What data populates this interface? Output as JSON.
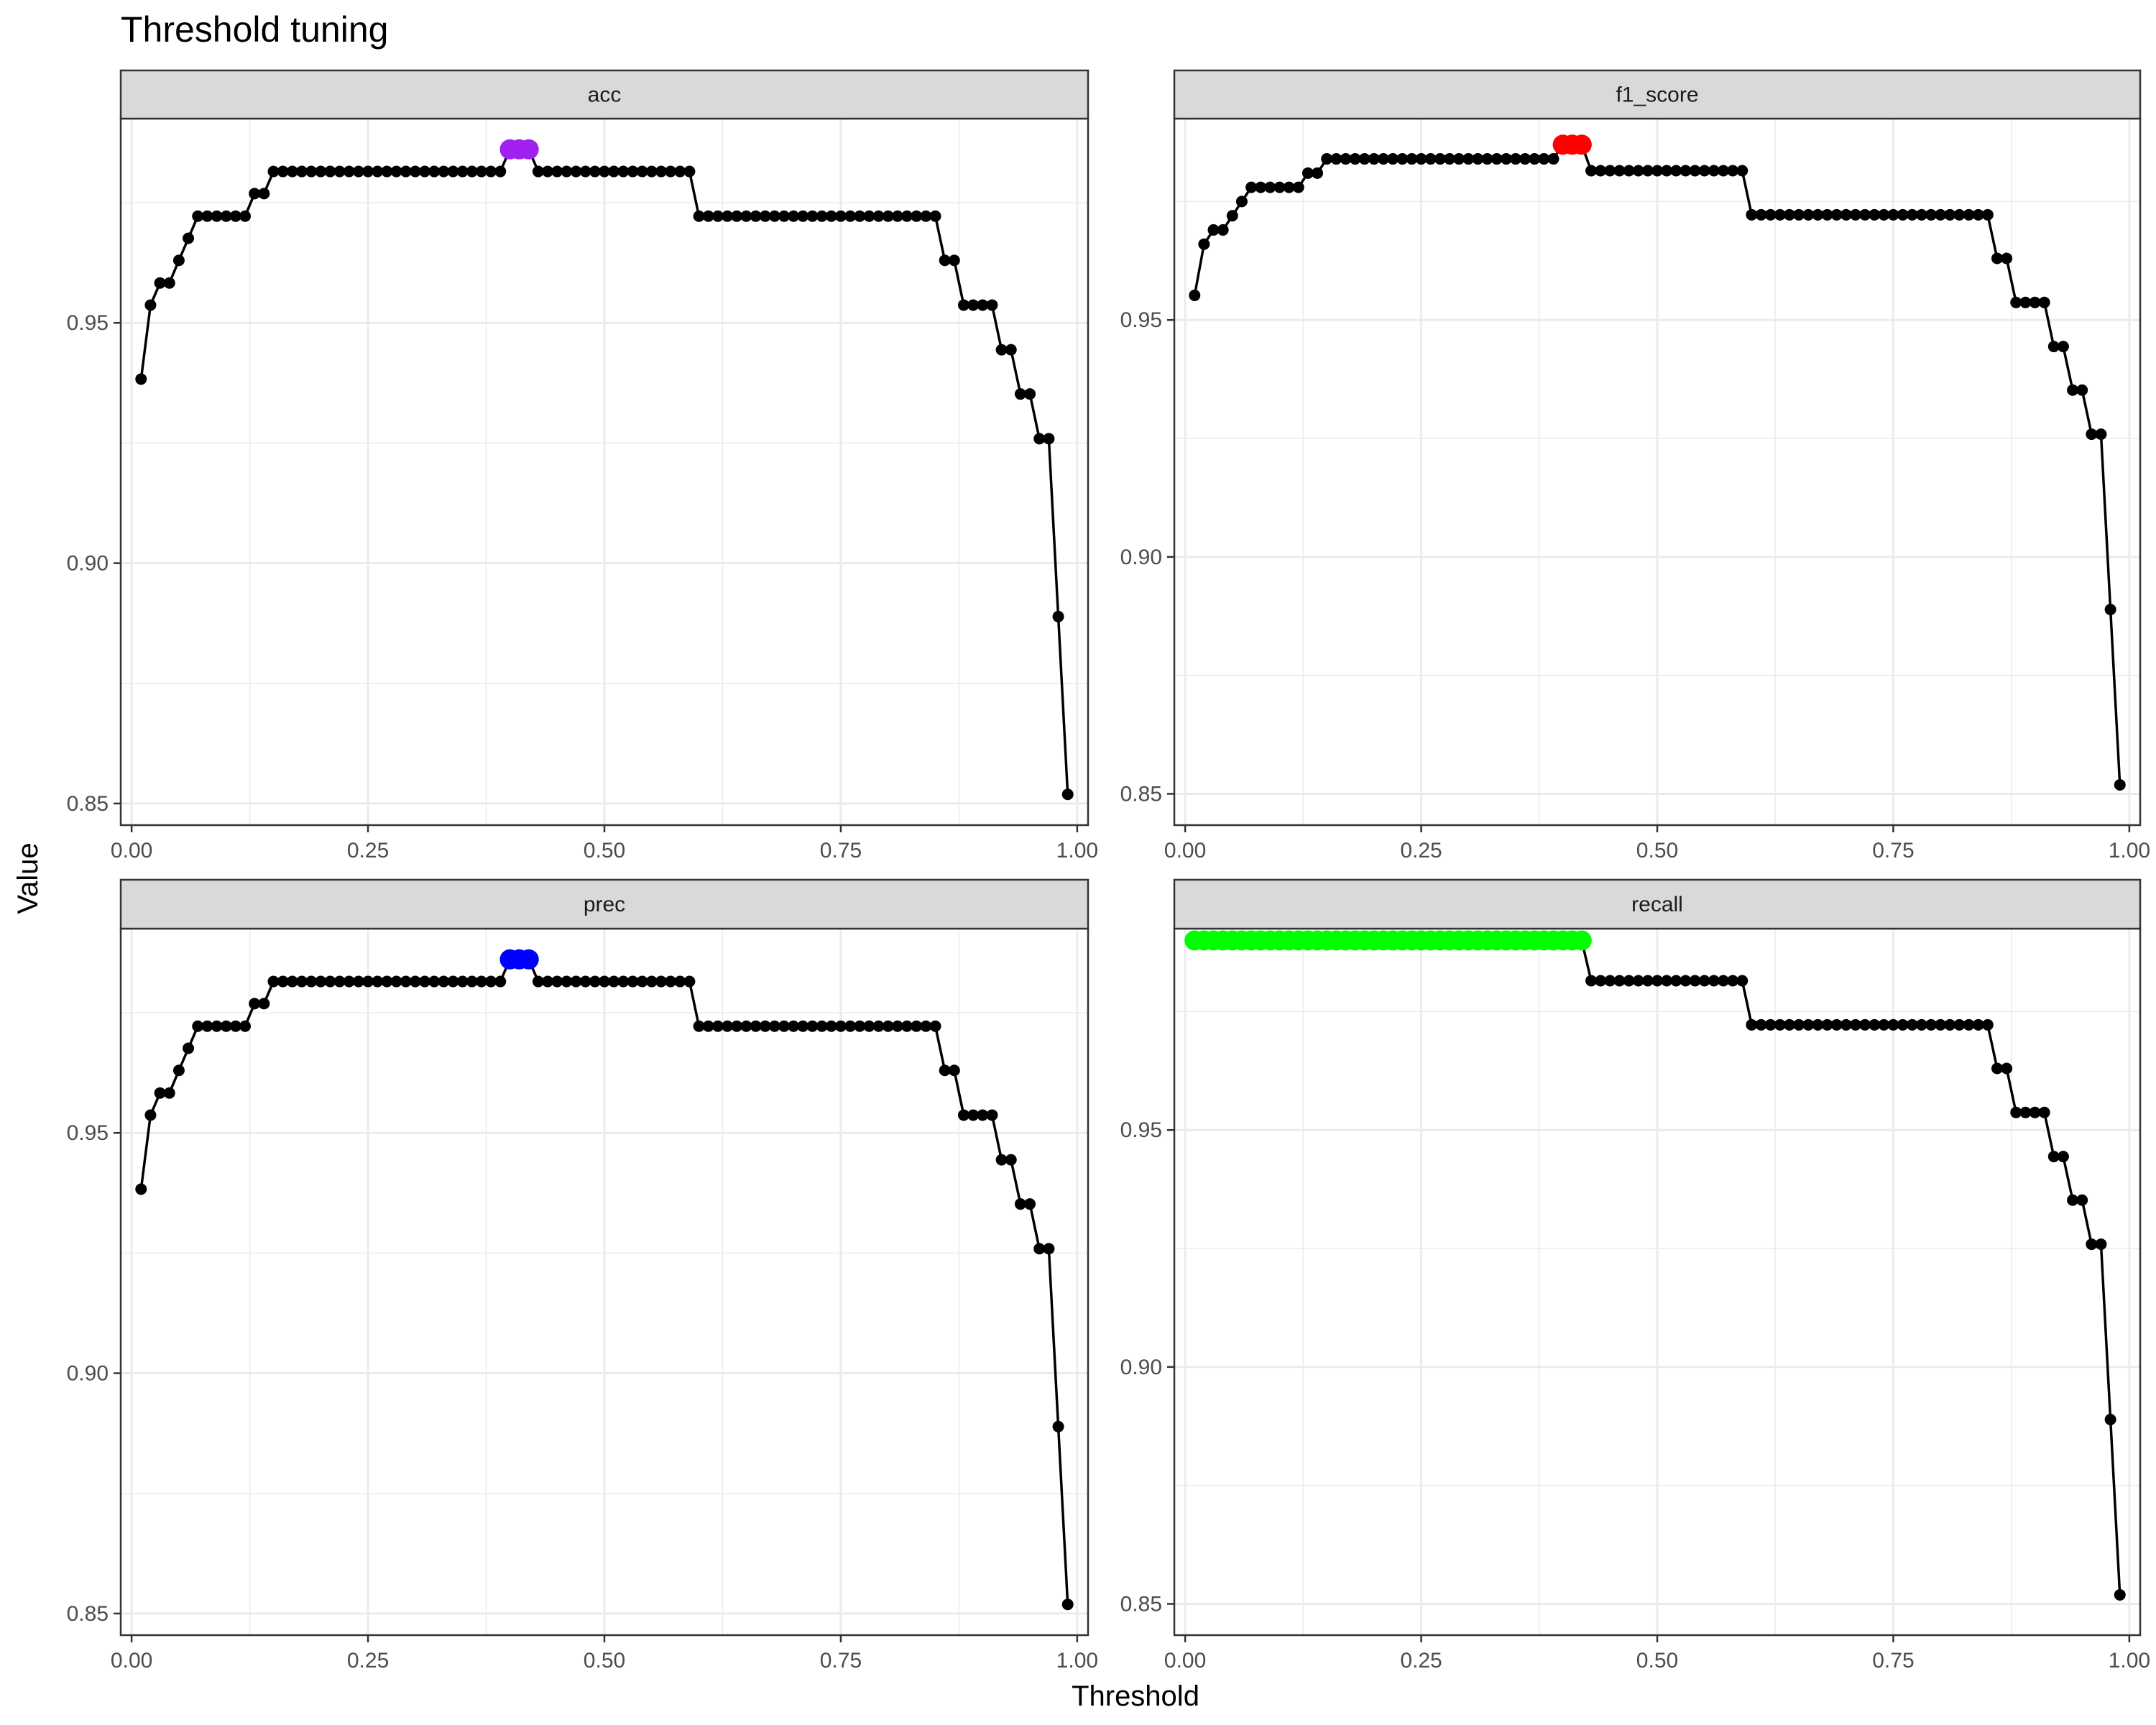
{
  "chart_data": {
    "type": "line",
    "title": "Threshold tuning",
    "xlabel": "Threshold",
    "ylabel": "Value",
    "x": [
      0.01,
      0.02,
      0.03,
      0.04,
      0.05,
      0.06,
      0.07,
      0.08,
      0.09,
      0.1,
      0.11,
      0.12,
      0.13,
      0.14,
      0.15,
      0.16,
      0.17,
      0.18,
      0.19,
      0.2,
      0.21,
      0.22,
      0.23,
      0.24,
      0.25,
      0.26,
      0.27,
      0.28,
      0.29,
      0.3,
      0.31,
      0.32,
      0.33,
      0.34,
      0.35,
      0.36,
      0.37,
      0.38,
      0.39,
      0.4,
      0.41,
      0.42,
      0.43,
      0.44,
      0.45,
      0.46,
      0.47,
      0.48,
      0.49,
      0.5,
      0.51,
      0.52,
      0.53,
      0.54,
      0.55,
      0.56,
      0.57,
      0.58,
      0.59,
      0.6,
      0.61,
      0.62,
      0.63,
      0.64,
      0.65,
      0.66,
      0.67,
      0.68,
      0.69,
      0.7,
      0.71,
      0.72,
      0.73,
      0.74,
      0.75,
      0.76,
      0.77,
      0.78,
      0.79,
      0.8,
      0.81,
      0.82,
      0.83,
      0.84,
      0.85,
      0.86,
      0.87,
      0.88,
      0.89,
      0.9,
      0.91,
      0.92,
      0.93,
      0.94,
      0.95,
      0.96,
      0.97,
      0.98,
      0.99
    ],
    "xlim": [
      -0.0115,
      1.0115
    ],
    "x_ticks": [
      0.0,
      0.25,
      0.5,
      0.75,
      1.0
    ],
    "x_tick_labels": [
      "0.00",
      "0.25",
      "0.50",
      "0.75",
      "1.00"
    ],
    "line_color": "#000000",
    "grid": true,
    "legend": "none",
    "panels": [
      {
        "name": "acc",
        "highlight_color": "#A020F0",
        "highlight_x": [
          0.4,
          0.41,
          0.42
        ],
        "ylim": [
          0.8455,
          0.9925
        ],
        "y_ticks": [
          0.85,
          0.9,
          0.95
        ],
        "y_tick_labels": [
          "0.85",
          "0.90",
          "0.95"
        ],
        "values": [
          0.9383,
          0.9537,
          0.9583,
          0.9583,
          0.963,
          0.9676,
          0.9722,
          0.9722,
          0.9722,
          0.9722,
          0.9722,
          0.9722,
          0.9769,
          0.9769,
          0.9815,
          0.9815,
          0.9815,
          0.9815,
          0.9815,
          0.9815,
          0.9815,
          0.9815,
          0.9815,
          0.9815,
          0.9815,
          0.9815,
          0.9815,
          0.9815,
          0.9815,
          0.9815,
          0.9815,
          0.9815,
          0.9815,
          0.9815,
          0.9815,
          0.9815,
          0.9815,
          0.9815,
          0.9815,
          0.9861,
          0.9861,
          0.9861,
          0.9815,
          0.9815,
          0.9815,
          0.9815,
          0.9815,
          0.9815,
          0.9815,
          0.9815,
          0.9815,
          0.9815,
          0.9815,
          0.9815,
          0.9815,
          0.9815,
          0.9815,
          0.9815,
          0.9815,
          0.9722,
          0.9722,
          0.9722,
          0.9722,
          0.9722,
          0.9722,
          0.9722,
          0.9722,
          0.9722,
          0.9722,
          0.9722,
          0.9722,
          0.9722,
          0.9722,
          0.9722,
          0.9722,
          0.9722,
          0.9722,
          0.9722,
          0.9722,
          0.9722,
          0.9722,
          0.9722,
          0.9722,
          0.9722,
          0.9722,
          0.963,
          0.963,
          0.9537,
          0.9537,
          0.9537,
          0.9537,
          0.9444,
          0.9444,
          0.9352,
          0.9352,
          0.9259,
          0.9259,
          0.8889,
          0.8519
        ]
      },
      {
        "name": "f1_score",
        "highlight_color": "#FF0000",
        "highlight_x": [
          0.4,
          0.41,
          0.42
        ],
        "ylim": [
          0.8434,
          0.9925
        ],
        "y_ticks": [
          0.85,
          0.9,
          0.95
        ],
        "y_tick_labels": [
          "0.85",
          "0.90",
          "0.95"
        ],
        "values": [
          0.9552,
          0.966,
          0.969,
          0.969,
          0.972,
          0.975,
          0.978,
          0.978,
          0.978,
          0.978,
          0.978,
          0.978,
          0.981,
          0.981,
          0.984,
          0.984,
          0.984,
          0.984,
          0.984,
          0.984,
          0.984,
          0.984,
          0.984,
          0.984,
          0.984,
          0.984,
          0.984,
          0.984,
          0.984,
          0.984,
          0.984,
          0.984,
          0.984,
          0.984,
          0.984,
          0.984,
          0.984,
          0.984,
          0.984,
          0.987,
          0.987,
          0.987,
          0.9815,
          0.9815,
          0.9815,
          0.9815,
          0.9815,
          0.9815,
          0.9815,
          0.9815,
          0.9815,
          0.9815,
          0.9815,
          0.9815,
          0.9815,
          0.9815,
          0.9815,
          0.9815,
          0.9815,
          0.9722,
          0.9722,
          0.9722,
          0.9722,
          0.9722,
          0.9722,
          0.9722,
          0.9722,
          0.9722,
          0.9722,
          0.9722,
          0.9722,
          0.9722,
          0.9722,
          0.9722,
          0.9722,
          0.9722,
          0.9722,
          0.9722,
          0.9722,
          0.9722,
          0.9722,
          0.9722,
          0.9722,
          0.9722,
          0.9722,
          0.963,
          0.963,
          0.9537,
          0.9537,
          0.9537,
          0.9537,
          0.9444,
          0.9444,
          0.9352,
          0.9352,
          0.9259,
          0.9259,
          0.8889,
          0.8519
        ]
      },
      {
        "name": "prec",
        "highlight_color": "#0000FF",
        "highlight_x": [
          0.4,
          0.41,
          0.42
        ],
        "ylim": [
          0.8455,
          0.9925
        ],
        "y_ticks": [
          0.85,
          0.9,
          0.95
        ],
        "y_tick_labels": [
          "0.85",
          "0.90",
          "0.95"
        ],
        "values": [
          0.9383,
          0.9537,
          0.9583,
          0.9583,
          0.963,
          0.9676,
          0.9722,
          0.9722,
          0.9722,
          0.9722,
          0.9722,
          0.9722,
          0.9769,
          0.9769,
          0.9815,
          0.9815,
          0.9815,
          0.9815,
          0.9815,
          0.9815,
          0.9815,
          0.9815,
          0.9815,
          0.9815,
          0.9815,
          0.9815,
          0.9815,
          0.9815,
          0.9815,
          0.9815,
          0.9815,
          0.9815,
          0.9815,
          0.9815,
          0.9815,
          0.9815,
          0.9815,
          0.9815,
          0.9815,
          0.9861,
          0.9861,
          0.9861,
          0.9815,
          0.9815,
          0.9815,
          0.9815,
          0.9815,
          0.9815,
          0.9815,
          0.9815,
          0.9815,
          0.9815,
          0.9815,
          0.9815,
          0.9815,
          0.9815,
          0.9815,
          0.9815,
          0.9815,
          0.9722,
          0.9722,
          0.9722,
          0.9722,
          0.9722,
          0.9722,
          0.9722,
          0.9722,
          0.9722,
          0.9722,
          0.9722,
          0.9722,
          0.9722,
          0.9722,
          0.9722,
          0.9722,
          0.9722,
          0.9722,
          0.9722,
          0.9722,
          0.9722,
          0.9722,
          0.9722,
          0.9722,
          0.9722,
          0.9722,
          0.963,
          0.963,
          0.9537,
          0.9537,
          0.9537,
          0.9537,
          0.9444,
          0.9444,
          0.9352,
          0.9352,
          0.9259,
          0.9259,
          0.8889,
          0.8519
        ]
      },
      {
        "name": "recall",
        "highlight_color": "#00FF00",
        "highlight_x": [
          0.01,
          0.02,
          0.03,
          0.04,
          0.05,
          0.06,
          0.07,
          0.08,
          0.09,
          0.1,
          0.11,
          0.12,
          0.13,
          0.14,
          0.15,
          0.16,
          0.17,
          0.18,
          0.19,
          0.2,
          0.21,
          0.22,
          0.23,
          0.24,
          0.25,
          0.26,
          0.27,
          0.28,
          0.29,
          0.3,
          0.31,
          0.32,
          0.33,
          0.34,
          0.35,
          0.36,
          0.37,
          0.38,
          0.39,
          0.4,
          0.41,
          0.42
        ],
        "ylim": [
          0.8434,
          0.9925
        ],
        "y_ticks": [
          0.85,
          0.9,
          0.95
        ],
        "y_tick_labels": [
          "0.85",
          "0.90",
          "0.95"
        ],
        "values": [
          0.99,
          0.99,
          0.99,
          0.99,
          0.99,
          0.99,
          0.99,
          0.99,
          0.99,
          0.99,
          0.99,
          0.99,
          0.99,
          0.99,
          0.99,
          0.99,
          0.99,
          0.99,
          0.99,
          0.99,
          0.99,
          0.99,
          0.99,
          0.99,
          0.99,
          0.99,
          0.99,
          0.99,
          0.99,
          0.99,
          0.99,
          0.99,
          0.99,
          0.99,
          0.99,
          0.99,
          0.99,
          0.99,
          0.99,
          0.99,
          0.99,
          0.99,
          0.9815,
          0.9815,
          0.9815,
          0.9815,
          0.9815,
          0.9815,
          0.9815,
          0.9815,
          0.9815,
          0.9815,
          0.9815,
          0.9815,
          0.9815,
          0.9815,
          0.9815,
          0.9815,
          0.9815,
          0.9722,
          0.9722,
          0.9722,
          0.9722,
          0.9722,
          0.9722,
          0.9722,
          0.9722,
          0.9722,
          0.9722,
          0.9722,
          0.9722,
          0.9722,
          0.9722,
          0.9722,
          0.9722,
          0.9722,
          0.9722,
          0.9722,
          0.9722,
          0.9722,
          0.9722,
          0.9722,
          0.9722,
          0.9722,
          0.9722,
          0.963,
          0.963,
          0.9537,
          0.9537,
          0.9537,
          0.9537,
          0.9444,
          0.9444,
          0.9352,
          0.9352,
          0.9259,
          0.9259,
          0.8889,
          0.8519
        ]
      }
    ]
  }
}
